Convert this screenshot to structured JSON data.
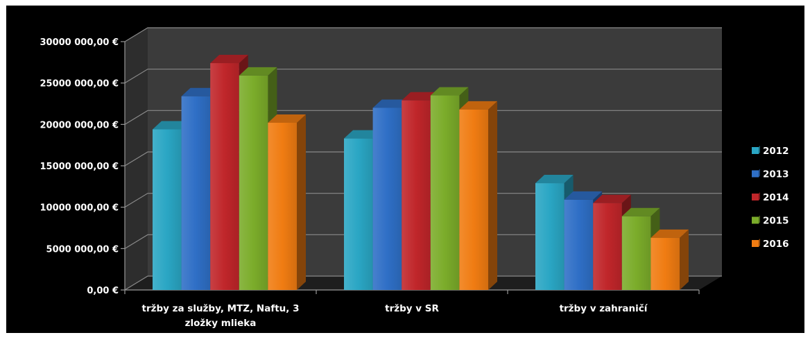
{
  "chart_data": {
    "type": "bar",
    "title": "",
    "xlabel": "",
    "ylabel": "",
    "categories": [
      [
        "tržby za služby, MTZ, Naftu, 3",
        "zložky mlieka"
      ],
      [
        "tržby v SR"
      ],
      [
        "tržby v zahraničí"
      ]
    ],
    "ylim": [
      0,
      30000000
    ],
    "yticks": [
      0,
      5000000,
      10000000,
      15000000,
      20000000,
      25000000,
      30000000
    ],
    "ytick_labels": [
      "0,00 €",
      "5000 000,00 €",
      "10000 000,00 €",
      "15000 000,00 €",
      "20000 000,00 €",
      "25000 000,00 €",
      "30000 000,00 €"
    ],
    "series": [
      {
        "name": "2012",
        "color": "#2aa6c4",
        "values": [
          19400000,
          18300000,
          12900000
        ]
      },
      {
        "name": "2013",
        "color": "#2f6fc6",
        "values": [
          23400000,
          22000000,
          10900000
        ]
      },
      {
        "name": "2014",
        "color": "#c0262a",
        "values": [
          27400000,
          22900000,
          10500000
        ]
      },
      {
        "name": "2015",
        "color": "#7bac2a",
        "values": [
          25900000,
          23500000,
          8900000
        ]
      },
      {
        "name": "2016",
        "color": "#f07c12",
        "values": [
          20200000,
          21800000,
          6300000
        ]
      }
    ],
    "legend_position": "right",
    "grid": true,
    "style": "3d-clustered-column",
    "background": "#000000",
    "plot_wall": "#3b3b3b"
  }
}
